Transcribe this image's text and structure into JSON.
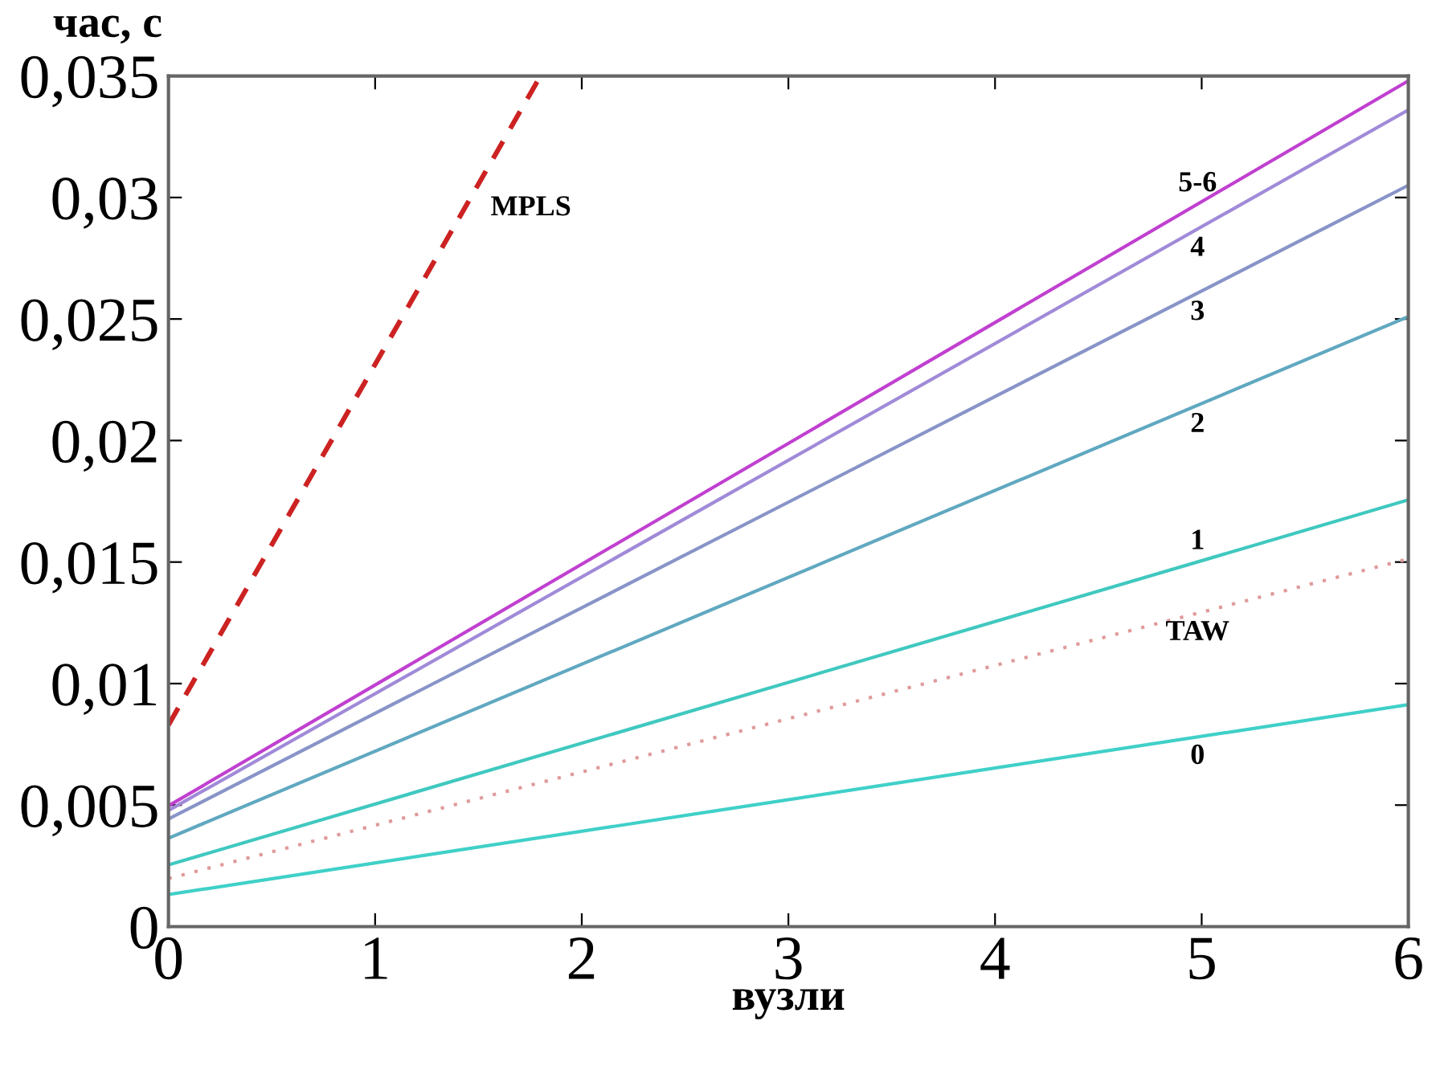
{
  "chart_data": {
    "type": "line",
    "xlabel": "вузли",
    "ylabel": "час, с",
    "x": [
      0,
      6
    ],
    "series": [
      {
        "name": "MPLS",
        "color": "#cc2222",
        "line_style": "dashed",
        "x": [
          0,
          1.8
        ],
        "values": [
          0.0083,
          0.035
        ]
      },
      {
        "name": "5-6",
        "color": "#c040d0",
        "values": [
          0.00497,
          0.0348
        ]
      },
      {
        "name": "4",
        "color": "#a08ad8",
        "values": [
          0.00478,
          0.0336
        ]
      },
      {
        "name": "3",
        "color": "#8894c8",
        "values": [
          0.00443,
          0.0305
        ]
      },
      {
        "name": "2",
        "color": "#60a8c0",
        "values": [
          0.00364,
          0.0251
        ]
      },
      {
        "name": "1",
        "color": "#40c8c0",
        "values": [
          0.00254,
          0.01756
        ]
      },
      {
        "name": "TAW",
        "color": "#e09a9a",
        "line_style": "dotted",
        "values": [
          0.00198,
          0.01513
        ]
      },
      {
        "name": "0",
        "color": "#40d0c8",
        "values": [
          0.00132,
          0.00913
        ]
      }
    ],
    "xlim": [
      0,
      6
    ],
    "ylim": [
      0,
      0.035
    ],
    "xticks": [
      0,
      1,
      2,
      3,
      4,
      5,
      6
    ],
    "yticks": [
      {
        "value": 0,
        "label": "0"
      },
      {
        "value": 0.005,
        "label": "0,005"
      },
      {
        "value": 0.01,
        "label": "0,01"
      },
      {
        "value": 0.015,
        "label": "0,015"
      },
      {
        "value": 0.02,
        "label": "0,02"
      },
      {
        "value": 0.025,
        "label": "0,025"
      },
      {
        "value": 0.03,
        "label": "0,03"
      },
      {
        "value": 0.035,
        "label": "0,035"
      }
    ],
    "grid": false,
    "legend": false,
    "marker": "none"
  }
}
